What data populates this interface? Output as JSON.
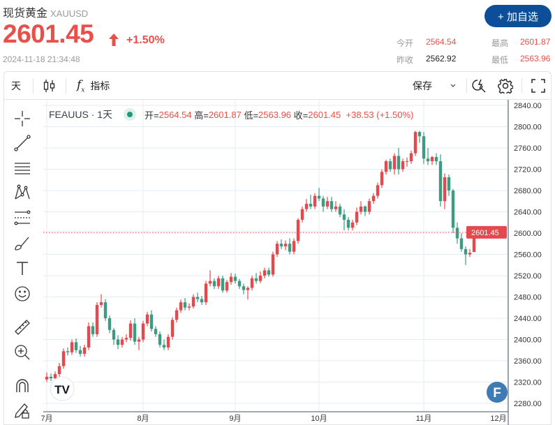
{
  "header": {
    "title": "现货黄金",
    "symbol": "XAUUSD",
    "price": "2601.45",
    "change_pct": "+1.50%",
    "timestamp": "2024-11-18 21:34:48",
    "add_watchlist": "+ 加自选"
  },
  "quote": {
    "open_label": "今开",
    "open": "2564.54",
    "high_label": "最高",
    "high": "2601.87",
    "prev_label": "昨收",
    "prev": "2562.92",
    "low_label": "最低",
    "low": "2563.96"
  },
  "toolbar": {
    "interval": "天",
    "indicators": "指标",
    "save": "保存"
  },
  "legend": {
    "symbol": "FEAUUS · 1天",
    "o_label": "开=",
    "o": "2564.54",
    "h_label": "高=",
    "h": "2601.87",
    "l_label": "低=",
    "l": "2563.96",
    "c_label": "收=",
    "c": "2601.45",
    "change": "+38.53",
    "change_pct": "(+1.50%)"
  },
  "colors": {
    "up": "#e5484d",
    "down": "#3f9a82",
    "accent": "#0c4f98",
    "grid": "#e3edf5"
  },
  "left_tools": [
    "crosshair-icon",
    "trend-line-icon",
    "horizontal-lines-icon",
    "pattern-icon",
    "fib-icon",
    "brush-icon",
    "text-icon",
    "emoji-icon",
    "ruler-icon",
    "zoom-in-icon",
    "magnet-icon",
    "lock-draw-icon"
  ],
  "chart_data": {
    "type": "candlestick",
    "price_ticks": [
      "2840.00",
      "2800.00",
      "2760.00",
      "2720.00",
      "2680.00",
      "2640.00",
      "2600.00",
      "2560.00",
      "2520.00",
      "2480.00",
      "2440.00",
      "2400.00",
      "2360.00",
      "2320.00",
      "2280.00"
    ],
    "ylim": [
      2280,
      2840
    ],
    "months": [
      {
        "label": "7月",
        "index": 0
      },
      {
        "label": "8月",
        "index": 23
      },
      {
        "label": "9月",
        "index": 45
      },
      {
        "label": "10月",
        "index": 65
      },
      {
        "label": "11月",
        "index": 90
      },
      {
        "label": "12月",
        "index": 110
      }
    ],
    "last_price": "2601.45",
    "ohlc": [
      [
        2325,
        2338,
        2320,
        2330
      ],
      [
        2330,
        2336,
        2322,
        2327
      ],
      [
        2327,
        2340,
        2322,
        2335
      ],
      [
        2335,
        2356,
        2330,
        2350
      ],
      [
        2350,
        2383,
        2345,
        2378
      ],
      [
        2378,
        2385,
        2370,
        2376
      ],
      [
        2376,
        2400,
        2371,
        2395
      ],
      [
        2395,
        2402,
        2375,
        2380
      ],
      [
        2380,
        2388,
        2368,
        2373
      ],
      [
        2373,
        2390,
        2368,
        2385
      ],
      [
        2385,
        2432,
        2380,
        2425
      ],
      [
        2425,
        2432,
        2405,
        2410
      ],
      [
        2410,
        2470,
        2405,
        2465
      ],
      [
        2465,
        2485,
        2460,
        2470
      ],
      [
        2470,
        2476,
        2435,
        2440
      ],
      [
        2440,
        2445,
        2412,
        2418
      ],
      [
        2418,
        2422,
        2390,
        2400
      ],
      [
        2400,
        2408,
        2382,
        2390
      ],
      [
        2390,
        2405,
        2385,
        2400
      ],
      [
        2400,
        2410,
        2395,
        2403
      ],
      [
        2403,
        2436,
        2398,
        2430
      ],
      [
        2430,
        2440,
        2390,
        2396
      ],
      [
        2396,
        2405,
        2380,
        2400
      ],
      [
        2400,
        2435,
        2395,
        2430
      ],
      [
        2430,
        2452,
        2425,
        2447
      ],
      [
        2447,
        2455,
        2415,
        2420
      ],
      [
        2420,
        2425,
        2405,
        2410
      ],
      [
        2410,
        2415,
        2385,
        2390
      ],
      [
        2390,
        2400,
        2380,
        2385
      ],
      [
        2385,
        2410,
        2380,
        2405
      ],
      [
        2405,
        2442,
        2400,
        2437
      ],
      [
        2437,
        2460,
        2432,
        2455
      ],
      [
        2455,
        2475,
        2450,
        2470
      ],
      [
        2470,
        2478,
        2455,
        2460
      ],
      [
        2460,
        2468,
        2455,
        2462
      ],
      [
        2462,
        2485,
        2458,
        2480
      ],
      [
        2480,
        2488,
        2470,
        2476
      ],
      [
        2476,
        2482,
        2465,
        2470
      ],
      [
        2470,
        2510,
        2465,
        2505
      ],
      [
        2505,
        2530,
        2500,
        2510
      ],
      [
        2510,
        2515,
        2495,
        2500
      ],
      [
        2500,
        2520,
        2495,
        2515
      ],
      [
        2515,
        2520,
        2488,
        2492
      ],
      [
        2492,
        2512,
        2488,
        2508
      ],
      [
        2508,
        2525,
        2503,
        2518
      ],
      [
        2518,
        2524,
        2505,
        2510
      ],
      [
        2510,
        2514,
        2495,
        2500
      ],
      [
        2500,
        2505,
        2485,
        2493
      ],
      [
        2493,
        2500,
        2475,
        2497
      ],
      [
        2497,
        2520,
        2492,
        2515
      ],
      [
        2515,
        2525,
        2505,
        2510
      ],
      [
        2510,
        2528,
        2506,
        2520
      ],
      [
        2520,
        2535,
        2515,
        2530
      ],
      [
        2530,
        2535,
        2518,
        2522
      ],
      [
        2522,
        2565,
        2518,
        2560
      ],
      [
        2560,
        2585,
        2555,
        2580
      ],
      [
        2580,
        2588,
        2570,
        2575
      ],
      [
        2575,
        2586,
        2568,
        2580
      ],
      [
        2580,
        2590,
        2560,
        2565
      ],
      [
        2565,
        2590,
        2560,
        2585
      ],
      [
        2585,
        2628,
        2580,
        2625
      ],
      [
        2625,
        2650,
        2620,
        2645
      ],
      [
        2645,
        2664,
        2640,
        2655
      ],
      [
        2655,
        2672,
        2645,
        2650
      ],
      [
        2650,
        2675,
        2645,
        2670
      ],
      [
        2670,
        2685,
        2660,
        2665
      ],
      [
        2665,
        2670,
        2640,
        2650
      ],
      [
        2650,
        2668,
        2645,
        2660
      ],
      [
        2660,
        2668,
        2640,
        2645
      ],
      [
        2645,
        2660,
        2640,
        2650
      ],
      [
        2650,
        2655,
        2630,
        2635
      ],
      [
        2635,
        2645,
        2605,
        2625
      ],
      [
        2625,
        2630,
        2605,
        2610
      ],
      [
        2610,
        2625,
        2605,
        2620
      ],
      [
        2620,
        2648,
        2615,
        2640
      ],
      [
        2640,
        2660,
        2635,
        2650
      ],
      [
        2650,
        2652,
        2632,
        2640
      ],
      [
        2640,
        2665,
        2635,
        2660
      ],
      [
        2660,
        2675,
        2655,
        2670
      ],
      [
        2670,
        2695,
        2665,
        2690
      ],
      [
        2690,
        2720,
        2685,
        2715
      ],
      [
        2715,
        2738,
        2710,
        2735
      ],
      [
        2735,
        2740,
        2715,
        2720
      ],
      [
        2720,
        2750,
        2710,
        2745
      ],
      [
        2745,
        2760,
        2710,
        2720
      ],
      [
        2720,
        2740,
        2715,
        2735
      ],
      [
        2735,
        2742,
        2725,
        2735
      ],
      [
        2735,
        2755,
        2730,
        2750
      ],
      [
        2750,
        2792,
        2745,
        2790
      ],
      [
        2790,
        2792,
        2770,
        2782
      ],
      [
        2782,
        2790,
        2730,
        2740
      ],
      [
        2740,
        2760,
        2728,
        2735
      ],
      [
        2735,
        2745,
        2728,
        2743
      ],
      [
        2743,
        2750,
        2728,
        2735
      ],
      [
        2735,
        2748,
        2650,
        2660
      ],
      [
        2660,
        2712,
        2645,
        2705
      ],
      [
        2705,
        2710,
        2670,
        2680
      ],
      [
        2680,
        2683,
        2600,
        2610
      ],
      [
        2610,
        2620,
        2580,
        2590
      ],
      [
        2590,
        2600,
        2565,
        2570
      ],
      [
        2570,
        2575,
        2540,
        2560
      ],
      [
        2560,
        2570,
        2555,
        2563
      ],
      [
        2564.54,
        2601.87,
        2563.96,
        2601.45
      ]
    ]
  }
}
